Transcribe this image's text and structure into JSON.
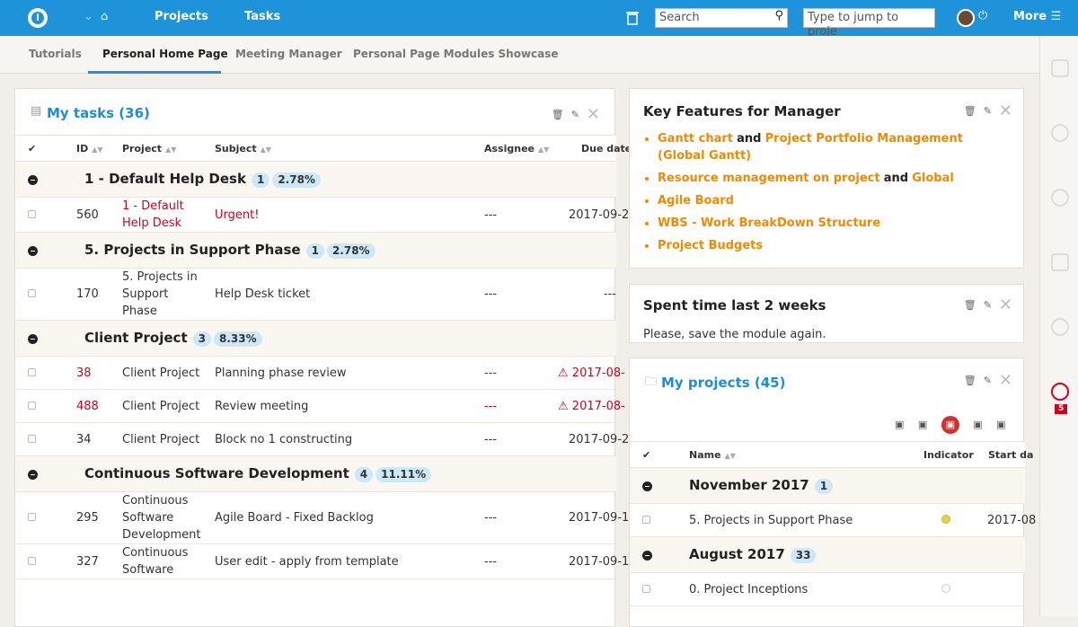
{
  "topbar": {
    "nav": [
      "Projects",
      "Tasks"
    ],
    "search_placeholder": "Search",
    "jump_placeholder": "Type to jump to proje",
    "more": "More"
  },
  "tabs": [
    "Tutorials",
    "Personal Home Page",
    "Meeting Manager",
    "Personal Page Modules Showcase"
  ],
  "my_tasks": {
    "title": "My tasks (36)",
    "columns": [
      "ID",
      "Project",
      "Subject",
      "Assignee",
      "Due date"
    ],
    "groups": [
      {
        "name": "1 - Default Help Desk",
        "count": "1",
        "percent": "2.78%",
        "rows": [
          [
            "560",
            "1 - Default Help Desk",
            "Urgent!",
            "---",
            "2017-09-2"
          ]
        ]
      },
      {
        "name": "5. Projects in Support Phase",
        "count": "1",
        "percent": "2.78%",
        "rows": [
          [
            "170",
            "5. Projects in Support Phase",
            "Help Desk ticket",
            "---",
            "---"
          ]
        ]
      },
      {
        "name": "Client Project",
        "count": "3",
        "percent": "8.33%",
        "rows": [
          [
            "38",
            "Client Project",
            "Planning phase review",
            "---",
            "2017-08-"
          ],
          [
            "488",
            "Client Project",
            "Review meeting",
            "---",
            "2017-08-"
          ],
          [
            "34",
            "Client Project",
            "Block no 1 constructing",
            "---",
            "2017-09-2"
          ]
        ]
      },
      {
        "name": "Continuous Software Development",
        "count": "4",
        "percent": "11.11%",
        "rows": [
          [
            "295",
            "Continuous Software Development",
            "Agile Board - Fixed Backlog",
            "---",
            "2017-09-1"
          ],
          [
            "327",
            "Continuous Software",
            "User edit - apply from template",
            "---",
            "2017-09-1"
          ]
        ]
      }
    ]
  },
  "key_features": {
    "title": "Key Features for Manager",
    "items": [
      [
        "Gantt chart",
        "and",
        "Project Portfolio Management (Global Gantt)"
      ],
      [
        "Resource management on project",
        "and",
        "Global"
      ],
      [
        "Agile Board"
      ],
      [
        "WBS - Work BreakDown Structure"
      ],
      [
        "Project Budgets"
      ]
    ]
  },
  "spent_time": {
    "title": "Spent time last 2 weeks",
    "message": "Please, save the module again."
  },
  "my_projects": {
    "title": "My projects (45)",
    "columns": [
      "Name",
      "Indicator",
      "Start da"
    ],
    "groups": [
      {
        "name": "November 2017",
        "count": "1",
        "rows": [
          [
            "5. Projects in Support Phase",
            "2017-08"
          ]
        ]
      },
      {
        "name": "August 2017",
        "count": "33",
        "rows": [
          [
            "0. Project Inceptions",
            ""
          ]
        ]
      }
    ]
  },
  "sidebar": {
    "badge": "5"
  }
}
